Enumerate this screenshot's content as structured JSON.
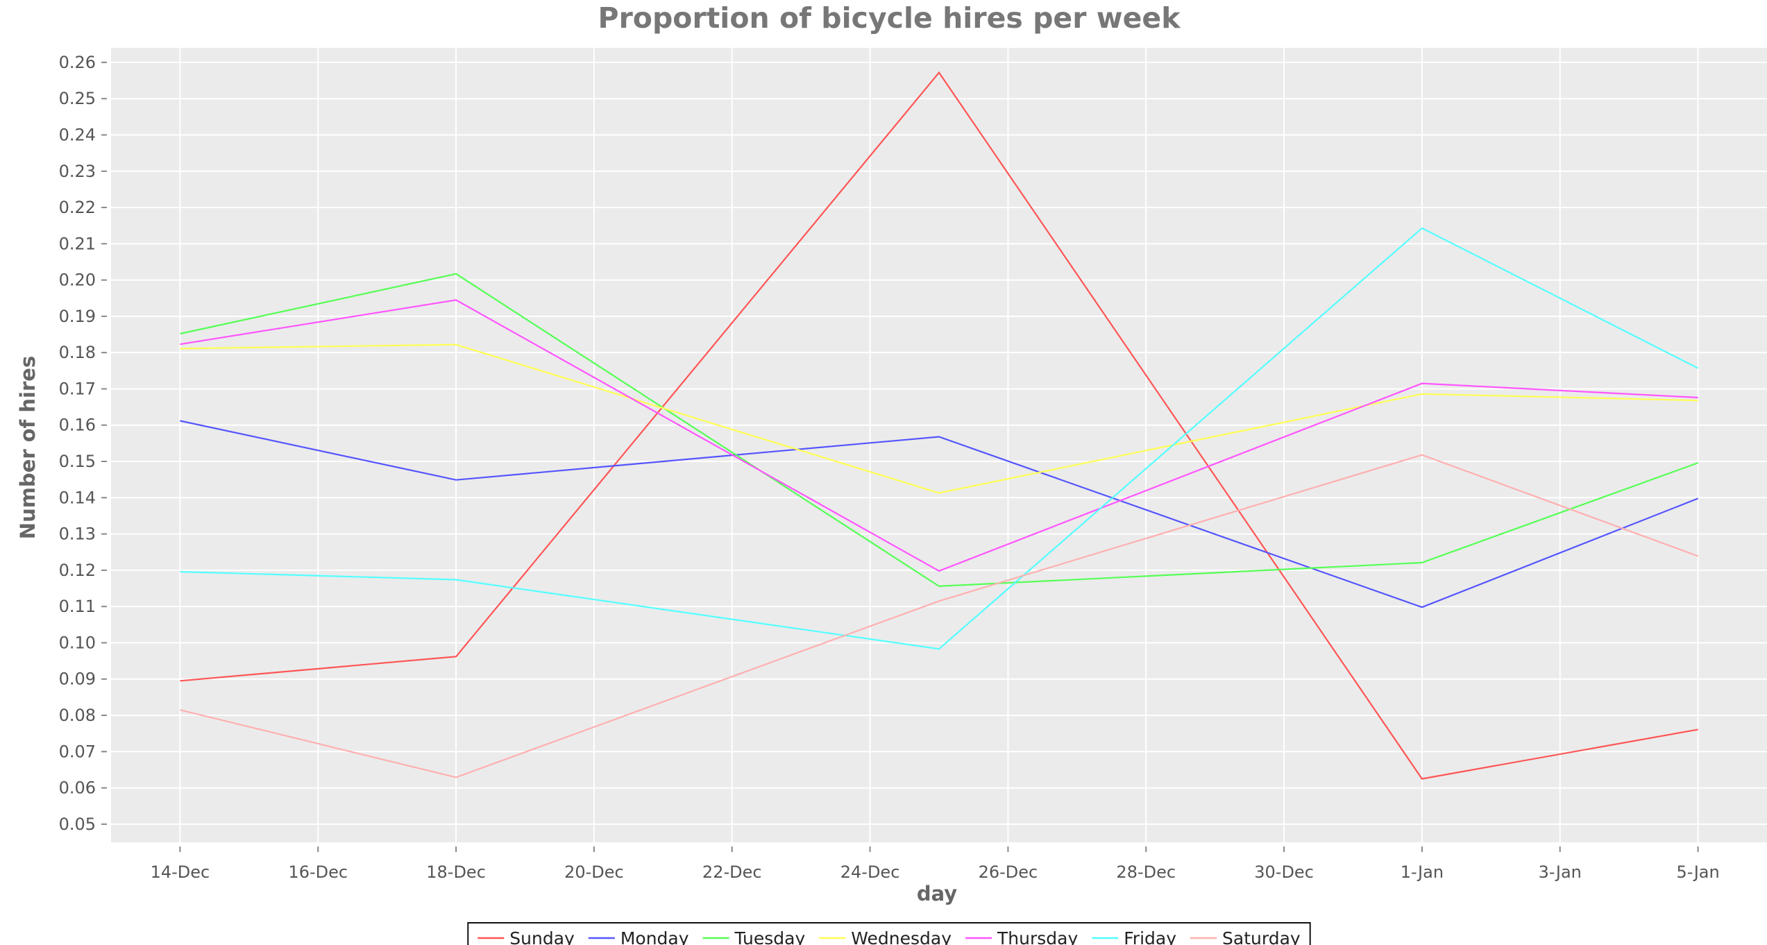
{
  "chart_data": {
    "type": "line",
    "title": "Proportion of bicycle hires per week",
    "xlabel": "day",
    "ylabel": "Number of hires",
    "x": [
      "2013-12-14",
      "2013-12-18",
      "2013-12-25",
      "2014-01-01",
      "2014-01-05"
    ],
    "x_ticks": [
      "14-Dec",
      "16-Dec",
      "18-Dec",
      "20-Dec",
      "22-Dec",
      "24-Dec",
      "26-Dec",
      "28-Dec",
      "30-Dec",
      "1-Jan",
      "3-Jan",
      "5-Jan"
    ],
    "xlim": [
      "2013-12-13.5",
      "2014-01-06.3"
    ],
    "ylim": [
      0.045,
      0.264
    ],
    "y_ticks": [
      "0.05",
      "0.06",
      "0.07",
      "0.08",
      "0.09",
      "0.10",
      "0.11",
      "0.12",
      "0.13",
      "0.14",
      "0.15",
      "0.16",
      "0.17",
      "0.18",
      "0.19",
      "0.20",
      "0.21",
      "0.22",
      "0.23",
      "0.24",
      "0.25",
      "0.26"
    ],
    "grid": true,
    "legend_position": "bottom",
    "series": [
      {
        "name": "Sunday",
        "color": "#ff5555",
        "values": [
          0.0895,
          0.0962,
          0.2572,
          0.0625,
          0.0761
        ]
      },
      {
        "name": "Monday",
        "color": "#5555ff",
        "values": [
          0.1612,
          0.1449,
          0.1568,
          0.1098,
          0.1398
        ]
      },
      {
        "name": "Tuesday",
        "color": "#55ff55",
        "values": [
          0.1852,
          0.2017,
          0.1156,
          0.1221,
          0.1496
        ]
      },
      {
        "name": "Wednesday",
        "color": "#ffff55",
        "values": [
          0.1811,
          0.1822,
          0.1413,
          0.1686,
          0.1668
        ]
      },
      {
        "name": "Thursday",
        "color": "#ff55ff",
        "values": [
          0.1823,
          0.1945,
          0.1198,
          0.1715,
          0.1676
        ]
      },
      {
        "name": "Friday",
        "color": "#55ffff",
        "values": [
          0.1196,
          0.1174,
          0.0983,
          0.2143,
          0.1757
        ]
      },
      {
        "name": "Saturday",
        "color": "#ffafaf",
        "values": [
          0.0815,
          0.0629,
          0.1115,
          0.1518,
          0.1239
        ]
      }
    ]
  }
}
